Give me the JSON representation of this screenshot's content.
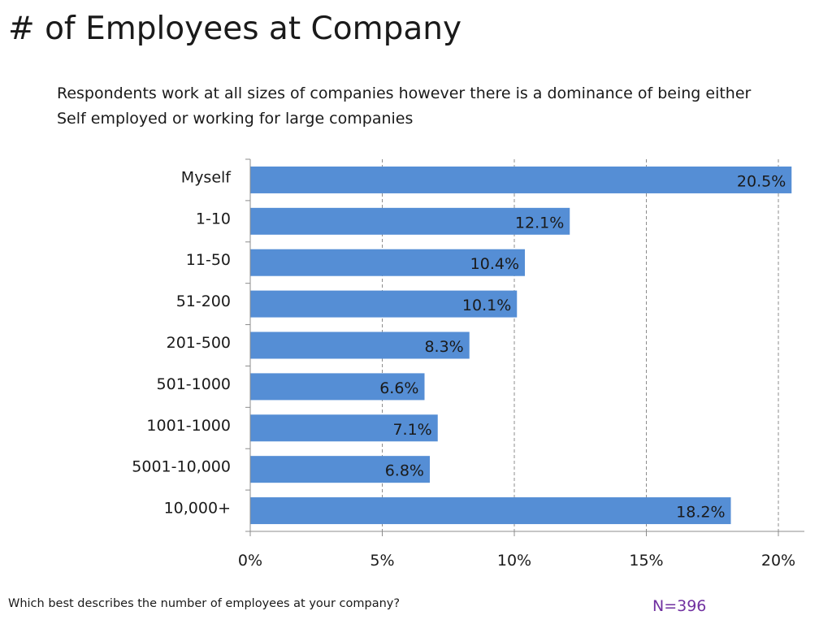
{
  "slide": {
    "title": "# of Employees at Company",
    "subtitle": "Respondents work at all sizes of companies however there is a dominance of being either Self employed or working for large companies",
    "question": "Which best describes the number of employees at your company?",
    "sample_size": "N=396",
    "sample_color": "#7030A0"
  },
  "chart_data": {
    "type": "bar",
    "orientation": "horizontal",
    "categories": [
      "Myself",
      "1-10",
      "11-50",
      "51-200",
      "201-500",
      "501-1000",
      "1001-1000",
      "5001-10,000",
      "10,000+"
    ],
    "values": [
      20.5,
      12.1,
      10.4,
      10.1,
      8.3,
      6.6,
      7.1,
      6.8,
      18.2
    ],
    "data_labels": [
      "20.5%",
      "12.1%",
      "10.4%",
      "10.1%",
      "8.3%",
      "6.6%",
      "7.1%",
      "6.8%",
      "18.2%"
    ],
    "x_ticks": [
      0,
      5,
      10,
      15,
      20
    ],
    "x_tick_labels": [
      "0%",
      "5%",
      "10%",
      "15%",
      "20%"
    ],
    "xlim": [
      0,
      21
    ],
    "grid": "vertical dashed",
    "bar_color": "#558ED5"
  }
}
